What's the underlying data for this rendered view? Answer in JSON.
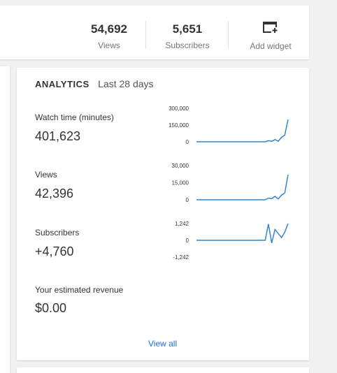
{
  "stats": {
    "views": {
      "value": "54,692",
      "label": "Views"
    },
    "subscribers": {
      "value": "5,651",
      "label": "Subscribers"
    },
    "add_widget_label": "Add widget"
  },
  "analytics": {
    "title": "ANALYTICS",
    "period": "Last 28 days",
    "metrics": [
      {
        "label": "Watch time (minutes)",
        "value": "401,623",
        "ticks": [
          "300,000",
          "150,000",
          "0"
        ]
      },
      {
        "label": "Views",
        "value": "42,396",
        "ticks": [
          "30,000",
          "15,000",
          "0"
        ]
      },
      {
        "label": "Subscribers",
        "value": "+4,760",
        "ticks": [
          "1,242",
          "0",
          "-1,242"
        ]
      },
      {
        "label": "Your estimated revenue",
        "value": "$0.00"
      }
    ],
    "view_all": "View all",
    "line_color": "#2f86d1"
  },
  "chart_data": [
    {
      "type": "line",
      "series": [
        {
          "values": [
            0,
            0,
            0,
            0,
            0,
            0,
            0,
            0,
            0,
            0,
            0,
            0,
            0,
            0,
            0,
            0,
            0,
            0,
            0,
            0,
            0,
            0,
            10000,
            5000,
            20000,
            5000,
            40000,
            60000,
            200000
          ]
        }
      ],
      "ylim": [
        0,
        300000
      ]
    },
    {
      "type": "line",
      "series": [
        {
          "values": [
            0,
            0,
            0,
            0,
            0,
            0,
            0,
            0,
            0,
            0,
            0,
            0,
            0,
            0,
            0,
            0,
            0,
            0,
            0,
            0,
            0,
            0,
            1500,
            1000,
            3000,
            800,
            4000,
            6000,
            22000
          ]
        }
      ],
      "ylim": [
        0,
        30000
      ]
    },
    {
      "type": "line",
      "series": [
        {
          "values": [
            0,
            0,
            0,
            0,
            0,
            0,
            0,
            0,
            0,
            0,
            0,
            0,
            0,
            0,
            0,
            0,
            0,
            0,
            0,
            0,
            0,
            0,
            1200,
            -200,
            800,
            500,
            200,
            600,
            1242
          ]
        }
      ],
      "ylim": [
        -1242,
        1242
      ]
    }
  ]
}
